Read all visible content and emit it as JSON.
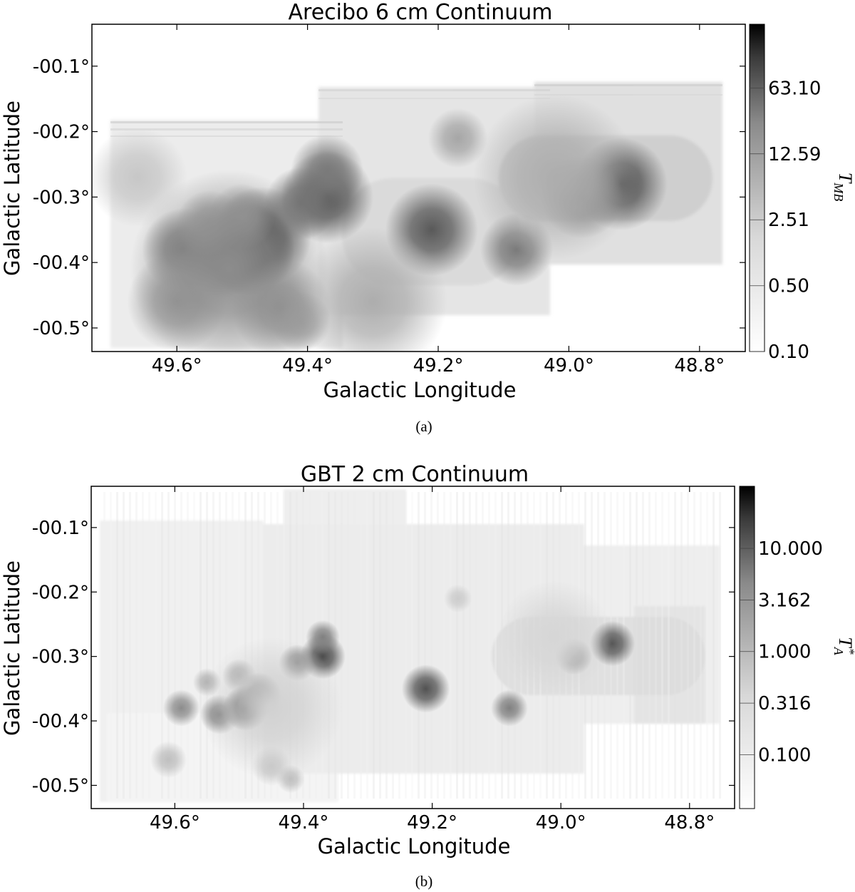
{
  "chart_data": [
    {
      "type": "heatmap",
      "title": "Arecibo 6 cm Continuum",
      "xlabel": "Galactic Longitude",
      "ylabel": "Galactic Latitude",
      "x_ticks": [
        "49.6°",
        "49.4°",
        "49.2°",
        "49.0°",
        "48.8°"
      ],
      "x_tick_values": [
        49.6,
        49.4,
        49.2,
        49.0,
        48.8
      ],
      "y_ticks": [
        "-00.1°",
        "-00.2°",
        "-00.3°",
        "-00.4°",
        "-00.5°"
      ],
      "y_tick_values": [
        -0.1,
        -0.2,
        -0.3,
        -0.4,
        -0.5
      ],
      "xlim": [
        49.73,
        48.73
      ],
      "ylim": [
        -0.536,
        -0.036
      ],
      "colorbar": {
        "label": "T",
        "label_sub": "MB",
        "label_sup": "",
        "scale": "log",
        "range": [
          0.1,
          300
        ],
        "ticks": [
          "63.10",
          "12.59",
          "2.51",
          "0.50",
          "0.10"
        ],
        "tick_values": [
          63.1,
          12.59,
          2.51,
          0.5,
          0.1
        ]
      },
      "caption": "(a)",
      "colormap": [
        "#ffffff",
        "#000000"
      ],
      "sources": [
        {
          "l": 49.49,
          "b": -0.38,
          "peak": 1.0,
          "w": 0.028
        },
        {
          "l": 49.47,
          "b": -0.36,
          "peak": 0.78,
          "w": 0.03
        },
        {
          "l": 49.53,
          "b": -0.39,
          "peak": 0.6,
          "w": 0.025
        },
        {
          "l": 49.59,
          "b": -0.38,
          "peak": 0.55,
          "w": 0.025
        },
        {
          "l": 49.55,
          "b": -0.34,
          "peak": 0.38,
          "w": 0.02
        },
        {
          "l": 49.5,
          "b": -0.33,
          "peak": 0.4,
          "w": 0.02
        },
        {
          "l": 49.37,
          "b": -0.3,
          "peak": 0.68,
          "w": 0.028
        },
        {
          "l": 49.37,
          "b": -0.26,
          "peak": 0.52,
          "w": 0.022
        },
        {
          "l": 49.41,
          "b": -0.31,
          "peak": 0.55,
          "w": 0.022
        },
        {
          "l": 49.6,
          "b": -0.46,
          "peak": 0.4,
          "w": 0.03
        },
        {
          "l": 49.44,
          "b": -0.47,
          "peak": 0.42,
          "w": 0.03
        },
        {
          "l": 49.41,
          "b": -0.49,
          "peak": 0.38,
          "w": 0.018
        },
        {
          "l": 49.21,
          "b": -0.35,
          "peak": 0.65,
          "w": 0.028
        },
        {
          "l": 49.17,
          "b": -0.21,
          "peak": 0.35,
          "w": 0.018
        },
        {
          "l": 49.08,
          "b": -0.38,
          "peak": 0.52,
          "w": 0.022
        },
        {
          "l": 48.92,
          "b": -0.28,
          "peak": 0.68,
          "w": 0.028
        },
        {
          "l": 48.98,
          "b": -0.3,
          "peak": 0.5,
          "w": 0.025
        },
        {
          "l": 49.02,
          "b": -0.27,
          "peak": 0.32,
          "w": 0.05
        },
        {
          "l": 49.3,
          "b": -0.46,
          "peak": 0.32,
          "w": 0.045
        },
        {
          "l": 49.52,
          "b": -0.41,
          "peak": 0.45,
          "w": 0.06
        },
        {
          "l": 49.66,
          "b": -0.27,
          "peak": 0.22,
          "w": 0.03
        }
      ]
    },
    {
      "type": "heatmap",
      "title": "GBT 2 cm Continuum",
      "xlabel": "Galactic Longitude",
      "ylabel": "Galactic Latitude",
      "x_ticks": [
        "49.6°",
        "49.4°",
        "49.2°",
        "49.0°",
        "48.8°"
      ],
      "x_tick_values": [
        49.6,
        49.4,
        49.2,
        49.0,
        48.8
      ],
      "y_ticks": [
        "-00.1°",
        "-00.2°",
        "-00.3°",
        "-00.4°",
        "-00.5°"
      ],
      "y_tick_values": [
        -0.1,
        -0.2,
        -0.3,
        -0.4,
        -0.5
      ],
      "xlim": [
        49.73,
        48.73
      ],
      "ylim": [
        -0.536,
        -0.036
      ],
      "colorbar": {
        "label": "T",
        "label_sub": "A",
        "label_sup": "*",
        "scale": "log",
        "range": [
          0.03,
          40
        ],
        "ticks": [
          "10.000",
          "3.162",
          "1.000",
          "0.316",
          "0.100"
        ],
        "tick_values": [
          10.0,
          3.162,
          1.0,
          0.316,
          0.1
        ]
      },
      "caption": "(b)",
      "colormap": [
        "#ffffff",
        "#000000"
      ],
      "sources": [
        {
          "l": 49.49,
          "b": -0.38,
          "peak": 1.0,
          "w": 0.016
        },
        {
          "l": 49.47,
          "b": -0.36,
          "peak": 0.72,
          "w": 0.016
        },
        {
          "l": 49.53,
          "b": -0.39,
          "peak": 0.55,
          "w": 0.014
        },
        {
          "l": 49.59,
          "b": -0.38,
          "peak": 0.45,
          "w": 0.013
        },
        {
          "l": 49.55,
          "b": -0.34,
          "peak": 0.3,
          "w": 0.01
        },
        {
          "l": 49.5,
          "b": -0.33,
          "peak": 0.35,
          "w": 0.012
        },
        {
          "l": 49.37,
          "b": -0.3,
          "peak": 0.7,
          "w": 0.016
        },
        {
          "l": 49.37,
          "b": -0.27,
          "peak": 0.5,
          "w": 0.012
        },
        {
          "l": 49.41,
          "b": -0.31,
          "peak": 0.48,
          "w": 0.013
        },
        {
          "l": 49.61,
          "b": -0.46,
          "peak": 0.25,
          "w": 0.013
        },
        {
          "l": 49.45,
          "b": -0.47,
          "peak": 0.22,
          "w": 0.014
        },
        {
          "l": 49.42,
          "b": -0.49,
          "peak": 0.25,
          "w": 0.01
        },
        {
          "l": 49.21,
          "b": -0.35,
          "peak": 0.68,
          "w": 0.017
        },
        {
          "l": 49.16,
          "b": -0.21,
          "peak": 0.2,
          "w": 0.01
        },
        {
          "l": 49.08,
          "b": -0.38,
          "peak": 0.5,
          "w": 0.013
        },
        {
          "l": 48.92,
          "b": -0.28,
          "peak": 0.66,
          "w": 0.016
        },
        {
          "l": 48.98,
          "b": -0.3,
          "peak": 0.45,
          "w": 0.013
        },
        {
          "l": 49.01,
          "b": -0.27,
          "peak": 0.16,
          "w": 0.04
        },
        {
          "l": 49.45,
          "b": -0.38,
          "peak": 0.18,
          "w": 0.05
        }
      ]
    }
  ]
}
